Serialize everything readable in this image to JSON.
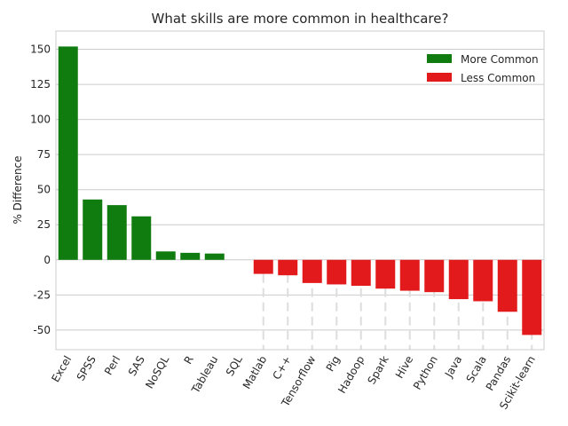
{
  "chart_data": {
    "type": "bar",
    "title": "What skills are more common in healthcare?",
    "xlabel": "",
    "ylabel": "% Difference",
    "ylim": [
      -64,
      163
    ],
    "yticks": [
      -50,
      -25,
      0,
      25,
      50,
      75,
      100,
      125,
      150
    ],
    "grid": true,
    "legend_position": "top-right",
    "categories": [
      "Excel",
      "SPSS",
      "Perl",
      "SAS",
      "NoSQL",
      "R",
      "Tableau",
      "SQL",
      "Matlab",
      "C++",
      "Tensorflow",
      "Pig",
      "Hadoop",
      "Spark",
      "Hive",
      "Python",
      "Java",
      "Scala",
      "Pandas",
      "Scikit-learn"
    ],
    "values": [
      152,
      43,
      39,
      31,
      6,
      5,
      4.5,
      0,
      -10,
      -11,
      -16.5,
      -17.5,
      -18.5,
      -20.5,
      -22,
      -23,
      -28,
      -29.5,
      -37,
      -53.5
    ],
    "colors": {
      "positive": "#107c10",
      "negative": "#e31a1c"
    },
    "legend": [
      {
        "label": "More Common",
        "color": "#107c10"
      },
      {
        "label": "Less Common",
        "color": "#e31a1c"
      }
    ]
  }
}
